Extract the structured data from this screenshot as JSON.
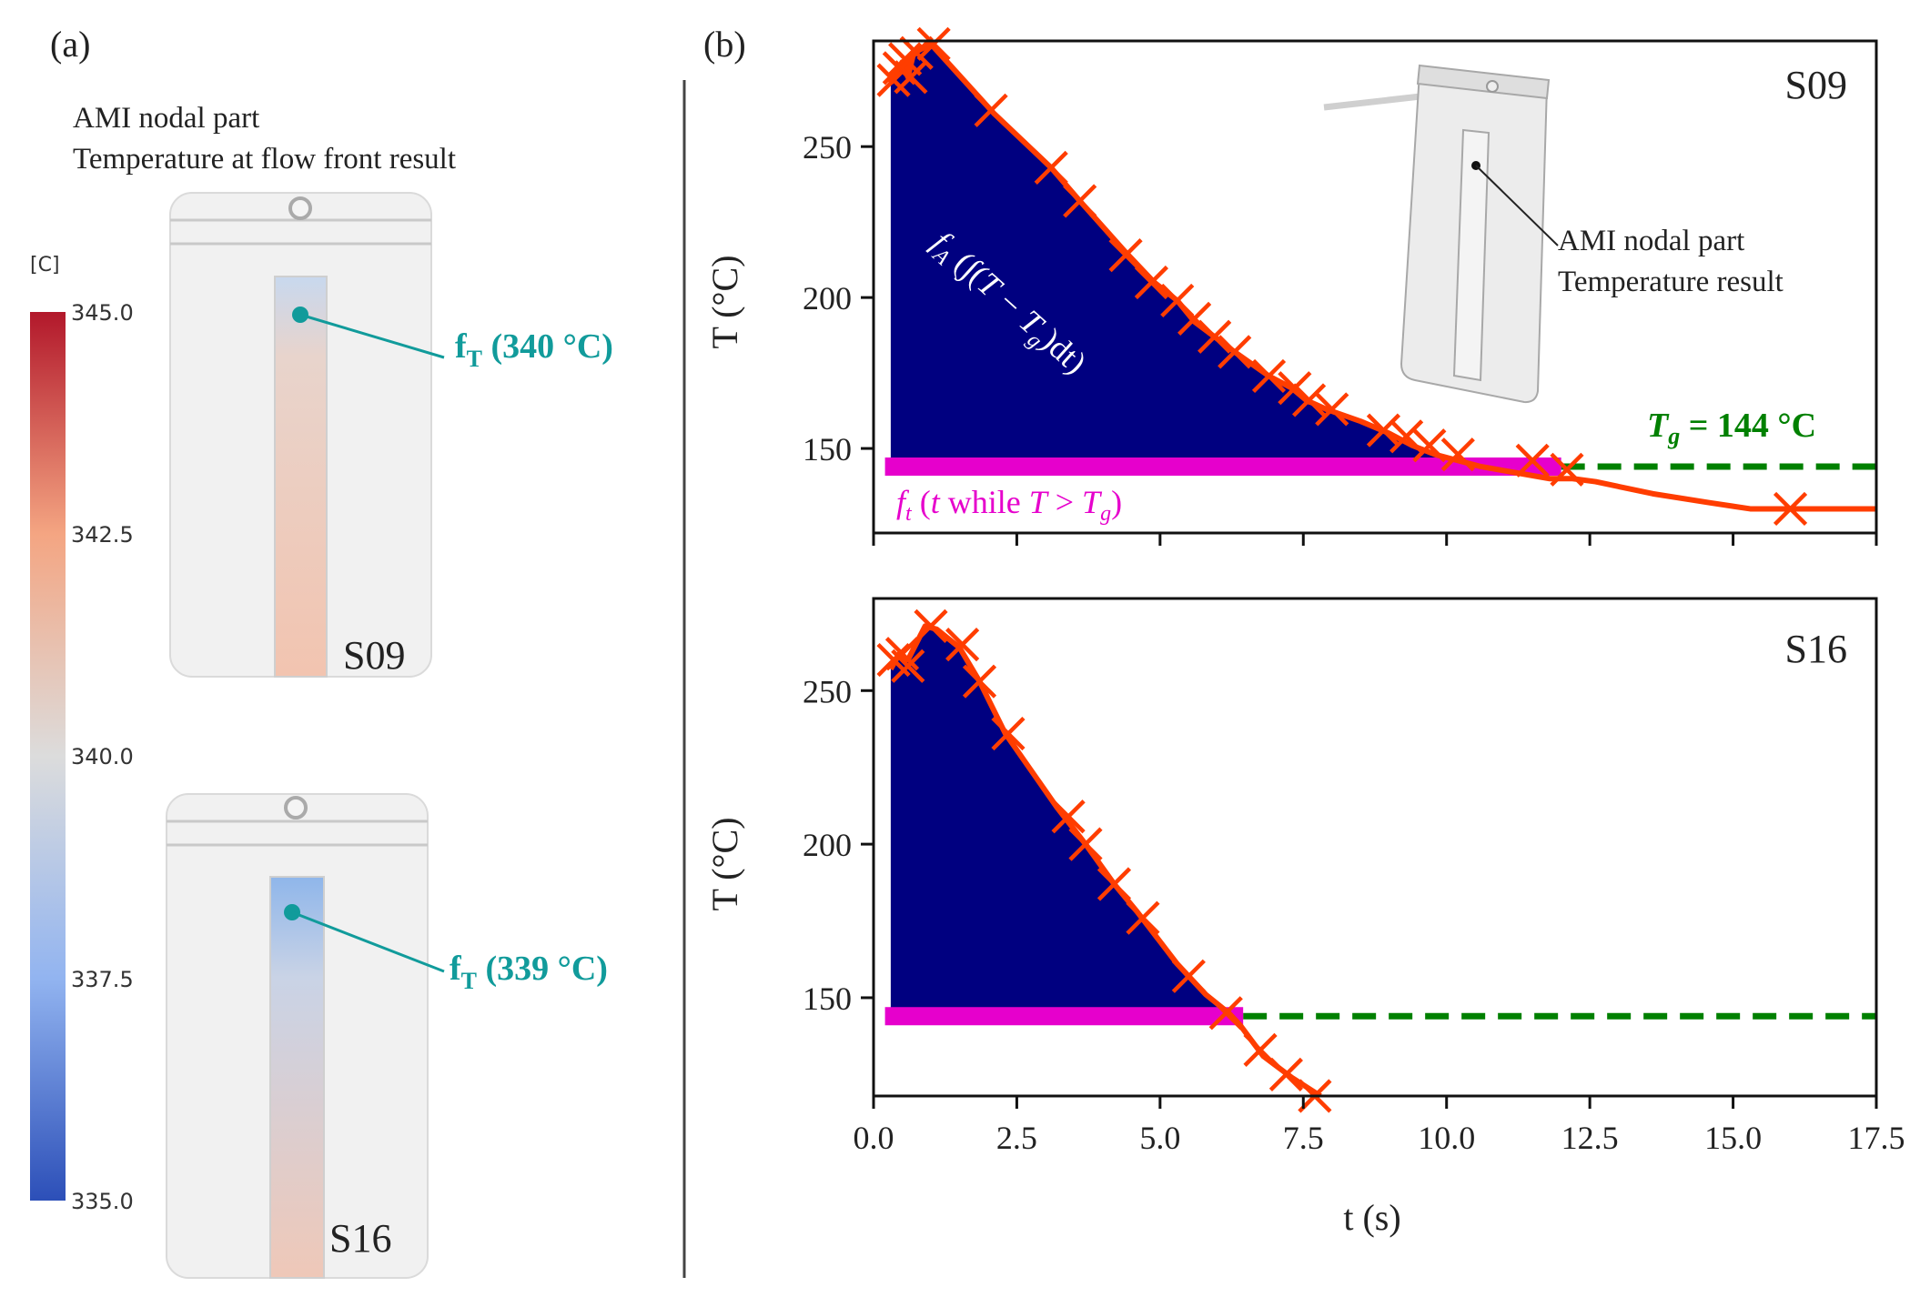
{
  "panel_a": {
    "label": "(a)",
    "title_line1": "AMI nodal part",
    "title_line2": "Temperature at flow front result",
    "colorbar": {
      "unit": "[C]",
      "ticks": [
        "345.0",
        "342.5",
        "340.0",
        "337.5",
        "335.0"
      ],
      "min": 335.0,
      "max": 345.0,
      "colors": {
        "high": "#b2182b",
        "mid": "#dcdcdc",
        "low": "#2c4fb8"
      }
    },
    "parts": [
      {
        "name": "S09",
        "label": "S09",
        "ft_label": "f",
        "ft_sub": "T",
        "ft_value": " (340 °C)",
        "temperature": 340
      },
      {
        "name": "S16",
        "label": "S16",
        "ft_label": "f",
        "ft_sub": "T",
        "ft_value": " (339 °C)",
        "temperature": 339
      }
    ],
    "accent": "#119b9b"
  },
  "panel_b": {
    "label": "(b)",
    "inset_label_line1": "AMI nodal part",
    "inset_label_line2": "Temperature result",
    "area_label": "f_A (∫(T − T_g)dt)",
    "time_label": "f_t (t while T > T_g)",
    "tg_label": "T_g = 144 °C",
    "colors": {
      "curve": "#ff3d00",
      "area": "#000080",
      "time_bar": "#e600cc",
      "tg_line": "#008000"
    }
  },
  "chart_data": [
    {
      "type": "line",
      "name": "S09",
      "title": "S09",
      "xlabel": "t (s)",
      "ylabel": "T (°C)",
      "xlim": [
        0,
        17.5
      ],
      "ylim": [
        122,
        285
      ],
      "xticks": [
        "0.0",
        "2.5",
        "5.0",
        "7.5",
        "10.0",
        "12.5",
        "15.0",
        "17.5"
      ],
      "yticks": [
        150,
        200,
        250
      ],
      "tg": 144,
      "area_start": 0.3,
      "x": [
        0.3,
        0.4,
        0.5,
        0.6,
        0.7,
        1.0,
        2.1,
        3.1,
        3.6,
        4.4,
        4.9,
        5.3,
        5.6,
        5.95,
        6.3,
        6.9,
        7.3,
        7.55,
        7.9,
        8.5,
        9.0,
        9.4,
        9.8,
        10.2,
        10.6,
        11.2,
        11.8,
        12.2,
        12.6,
        13.6,
        14.6,
        15.3,
        16.0,
        17.0,
        17.5
      ],
      "y": [
        271,
        275,
        278,
        273,
        281,
        284,
        261,
        243,
        232,
        215,
        205,
        199,
        192,
        187,
        182,
        174,
        170,
        166,
        163,
        159,
        155,
        151,
        148,
        146,
        144,
        142,
        140,
        140,
        139,
        135,
        132,
        130,
        130,
        130,
        130
      ],
      "markers_x": [
        0.35,
        0.45,
        0.55,
        0.65,
        0.75,
        1.05,
        2.05,
        3.1,
        3.6,
        4.4,
        4.85,
        5.3,
        5.6,
        5.95,
        6.3,
        6.9,
        7.35,
        7.6,
        8.0,
        8.9,
        9.3,
        9.7,
        10.2,
        11.5,
        12.1,
        16.0
      ],
      "markers_y": [
        272,
        276,
        279,
        273,
        281,
        284,
        262,
        243,
        232,
        214,
        205,
        199,
        193,
        187,
        182,
        174,
        170,
        166,
        163,
        156,
        154,
        151,
        148,
        146,
        143,
        130
      ],
      "time_bar": [
        0.2,
        12.0
      ]
    },
    {
      "type": "line",
      "name": "S16",
      "title": "S16",
      "xlabel": "t (s)",
      "ylabel": "T (°C)",
      "xlim": [
        0,
        17.5
      ],
      "ylim": [
        118,
        280
      ],
      "xticks": [
        "0.0",
        "2.5",
        "5.0",
        "7.5",
        "10.0",
        "12.5",
        "15.0",
        "17.5"
      ],
      "yticks": [
        150,
        200,
        250
      ],
      "tg": 144,
      "area_start": 0.3,
      "x": [
        0.3,
        0.45,
        0.6,
        0.9,
        1.1,
        1.5,
        1.85,
        2.3,
        3.2,
        3.7,
        4.2,
        4.6,
        5.3,
        5.8,
        6.2,
        6.4,
        6.8,
        7.3,
        7.8
      ],
      "y": [
        257,
        262,
        260,
        271,
        270,
        264,
        253,
        236,
        212,
        200,
        187,
        178,
        161,
        151,
        145,
        141,
        131,
        124,
        117
      ],
      "markers_x": [
        0.35,
        0.5,
        0.6,
        1.0,
        1.55,
        1.85,
        2.35,
        3.4,
        3.7,
        4.2,
        4.7,
        5.5,
        6.15,
        6.75,
        7.2,
        7.7
      ],
      "markers_y": [
        260,
        262,
        258,
        271,
        265,
        253,
        236,
        209,
        200,
        187,
        176,
        157,
        145,
        133,
        125,
        118
      ],
      "time_bar": [
        0.2,
        6.45
      ]
    }
  ]
}
